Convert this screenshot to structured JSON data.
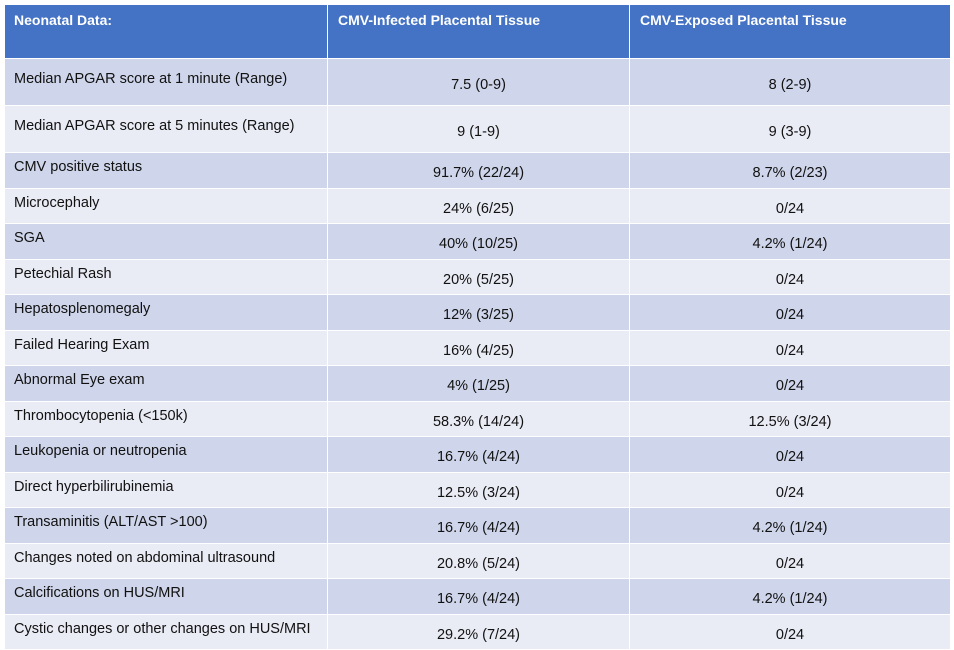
{
  "table": {
    "headers": [
      "Neonatal Data:",
      "CMV-Infected Placental Tissue",
      "CMV-Exposed Placental Tissue"
    ],
    "rows": [
      [
        "Median APGAR score at 1 minute (Range)",
        "7.5 (0-9)",
        "8 (2-9)"
      ],
      [
        "Median APGAR score at 5 minutes (Range)",
        "9 (1-9)",
        "9 (3-9)"
      ],
      [
        "CMV positive status",
        "91.7% (22/24)",
        "8.7% (2/23)"
      ],
      [
        "Microcephaly",
        "24% (6/25)",
        "0/24"
      ],
      [
        "SGA",
        "40% (10/25)",
        "4.2% (1/24)"
      ],
      [
        "Petechial Rash",
        "20% (5/25)",
        "0/24"
      ],
      [
        "Hepatosplenomegaly",
        "12% (3/25)",
        "0/24"
      ],
      [
        "Failed Hearing Exam",
        "16% (4/25)",
        "0/24"
      ],
      [
        "Abnormal Eye exam",
        "4% (1/25)",
        "0/24"
      ],
      [
        "Thrombocytopenia (<150k)",
        "58.3% (14/24)",
        "12.5% (3/24)"
      ],
      [
        "Leukopenia or neutropenia",
        "16.7% (4/24)",
        "0/24"
      ],
      [
        "Direct hyperbilirubinemia",
        "12.5% (3/24)",
        "0/24"
      ],
      [
        "Transaminitis (ALT/AST >100)",
        "16.7% (4/24)",
        "4.2% (1/24)"
      ],
      [
        "Changes noted on abdominal ultrasound",
        "20.8% (5/24)",
        "0/24"
      ],
      [
        "Calcifications on HUS/MRI",
        "16.7% (4/24)",
        "4.2% (1/24)"
      ],
      [
        "Cystic changes or other changes on HUS/MRI",
        "29.2% (7/24)",
        "0/24"
      ]
    ]
  },
  "colors": {
    "header_bg": "#4472c4",
    "row_dark": "#cfd5ea",
    "row_light": "#e9ebf5"
  }
}
